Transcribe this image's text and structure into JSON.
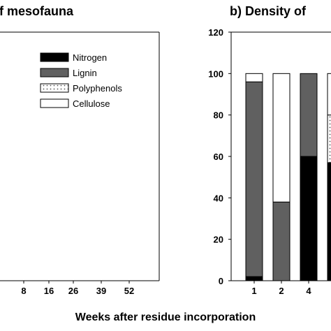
{
  "titles": {
    "left": "f mesofauna",
    "right": "b) Density of"
  },
  "shared_xlabel": "Weeks after residue incorporation",
  "chart_data": [
    {
      "type": "bar",
      "title": "f mesofauna",
      "categories": [
        "8",
        "16",
        "26",
        "39",
        "52"
      ],
      "series": [
        {
          "name": "Nitrogen",
          "color": "#000000"
        },
        {
          "name": "Lignin",
          "color": "#606060"
        },
        {
          "name": "Polyphenols",
          "color": "#d8d8d8"
        },
        {
          "name": "Cellulose",
          "color": "#ffffff"
        }
      ],
      "legend_placement": "top-right"
    },
    {
      "type": "bar",
      "stacked": true,
      "title": "b) Density of",
      "xlabel": "Weeks after residue incorporation",
      "ylim": [
        0,
        120
      ],
      "yticks": [
        0,
        20,
        40,
        60,
        80,
        100,
        120
      ],
      "categories": [
        "1",
        "2",
        "4",
        ""
      ],
      "series": [
        {
          "name": "Nitrogen",
          "color": "#000000",
          "values": [
            2,
            0,
            60,
            57
          ]
        },
        {
          "name": "Lignin",
          "color": "#606060",
          "values": [
            94,
            38,
            40,
            0
          ]
        },
        {
          "name": "Polyphenols",
          "color": "#d8d8d8",
          "values": [
            0,
            0,
            0,
            23
          ]
        },
        {
          "name": "Cellulose",
          "color": "#ffffff",
          "values": [
            4,
            62,
            0,
            20
          ]
        }
      ]
    }
  ]
}
